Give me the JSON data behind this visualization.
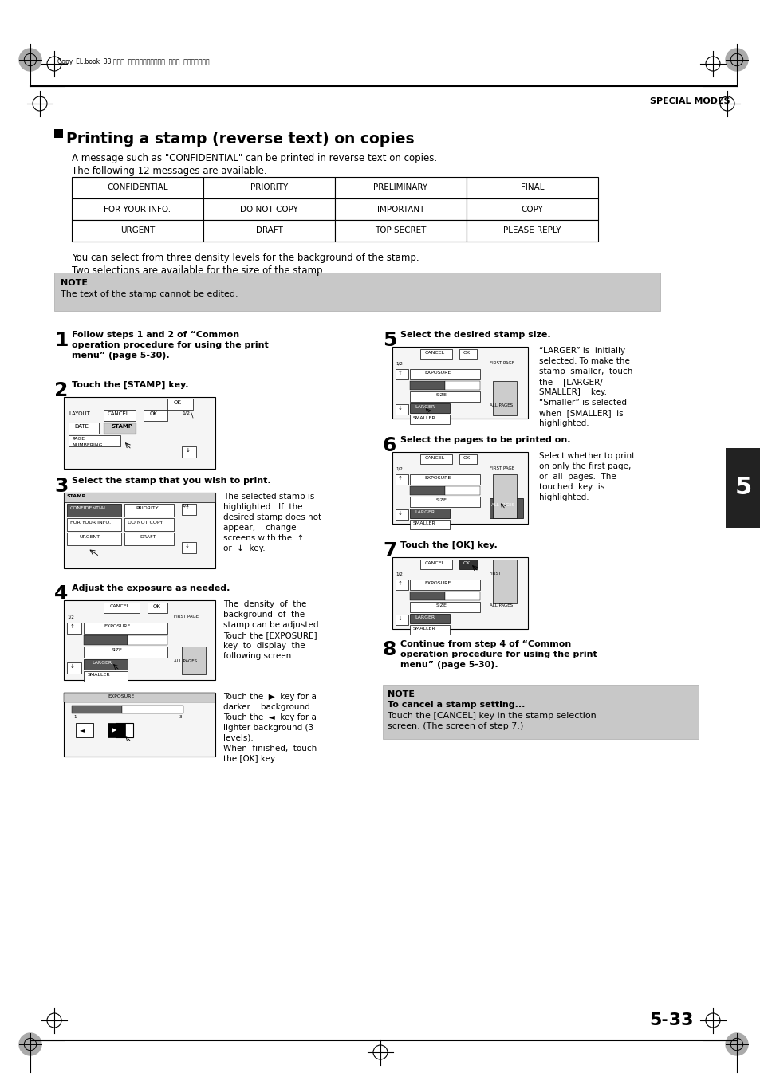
{
  "title": "Printing a stamp (reverse text) on copies",
  "header_right": "SPECIAL MODES",
  "header_file": "Copy_EL.book  33 ページ  ２００４年９月２８日  火曜日  午後９時５４分",
  "intro1": "A message such as \"CONFIDENTIAL\" can be printed in reverse text on copies.",
  "intro2": "The following 12 messages are available.",
  "table_data": [
    [
      "CONFIDENTIAL",
      "PRIORITY",
      "PRELIMINARY",
      "FINAL"
    ],
    [
      "FOR YOUR INFO.",
      "DO NOT COPY",
      "IMPORTANT",
      "COPY"
    ],
    [
      "URGENT",
      "DRAFT",
      "TOP SECRET",
      "PLEASE REPLY"
    ]
  ],
  "density_text1": "You can select from three density levels for the background of the stamp.",
  "density_text2": "Two selections are available for the size of the stamp.",
  "note_title": "NOTE",
  "note_text": "The text of the stamp cannot be edited.",
  "step1_text": "Follow steps 1 and 2 of “Common\noperation procedure for using the print\nmenu” (page 5-30).",
  "step2_text": "Touch the [STAMP] key.",
  "step3_text": "Select the stamp that you wish to print.",
  "step3_body": "The selected stamp is\nhighlighted.  If  the\ndesired stamp does not\nappear,    change\nscreens with the  ↑\nor  ↓  key.",
  "step4_text": "Adjust the exposure as needed.",
  "step4_body1": "The  density  of  the\nbackground  of  the\nstamp can be adjusted.\nTouch the [EXPOSURE]\nkey  to  display  the\nfollowing screen.",
  "step4_body2": "Touch the  ▶  key for a\ndarker    background.\nTouch the  ◄  key for a\nlighter background (3\nlevels).\nWhen  finished,  touch\nthe [OK] key.",
  "step5_text": "Select the desired stamp size.",
  "step5_body": "“LARGER” is  initially\nselected. To make the\nstamp  smaller,  touch\nthe    [LARGER/\nSMALLER]    key.\n“Smaller” is selected\nwhen  [SMALLER]  is\nhighlighted.",
  "step6_text": "Select the pages to be printed on.",
  "step6_body": "Select whether to print\non only the first page,\nor  all  pages.  The\ntouched  key  is\nhighlighted.",
  "step7_text": "Touch the [OK] key.",
  "step8_text": "Continue from step 4 of “Common\noperation procedure for using the print\nmenu” (page 5-30).",
  "note2_title": "NOTE",
  "note2_subtitle": "To cancel a stamp setting...",
  "note2_text": "Touch the [CANCEL] key in the stamp selection\nscreen. (The screen of step 7.)",
  "page_num": "5-33",
  "section_num": "5",
  "bg_color": "#ffffff",
  "note_bg": "#c8c8c8",
  "text_color": "#000000"
}
